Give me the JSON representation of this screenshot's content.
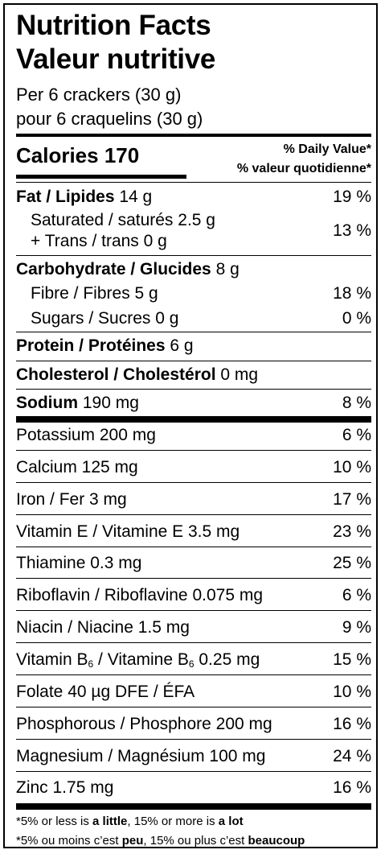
{
  "title_en": "Nutrition Facts",
  "title_fr": "Valeur nutritive",
  "serving_en": "Per 6 crackers (30 g)",
  "serving_fr": "pour 6 craquelins (30 g)",
  "calories_label": "Calories",
  "calories_value": "170",
  "dv_header_en": "% Daily Value*",
  "dv_header_fr": "% valeur quotidienne*",
  "fat": {
    "label": "Fat / Lipides",
    "amount": "14 g",
    "dv": "19 %"
  },
  "saturated": {
    "label": "Saturated / saturés",
    "amount": "2.5 g"
  },
  "trans": {
    "label": "+ Trans / trans",
    "amount": "0 g"
  },
  "sat_trans_dv": "13 %",
  "carbohydrate": {
    "label": "Carbohydrate / Glucides",
    "amount": "8 g"
  },
  "fibre": {
    "label": "Fibre / Fibres",
    "amount": "5 g",
    "dv": "18 %"
  },
  "sugars": {
    "label": "Sugars / Sucres",
    "amount": "0 g",
    "dv": "0 %"
  },
  "protein": {
    "label": "Protein / Protéines",
    "amount": "6 g"
  },
  "cholesterol": {
    "label": "Cholesterol / Cholestérol",
    "amount": "0 mg"
  },
  "sodium": {
    "label": "Sodium",
    "amount": "190 mg",
    "dv": "8 %"
  },
  "minerals": [
    {
      "label": "Potassium 200 mg",
      "dv": "6 %"
    },
    {
      "label": "Calcium 125 mg",
      "dv": "10 %"
    },
    {
      "label": "Iron / Fer 3 mg",
      "dv": "17 %"
    },
    {
      "label": "Vitamin E / Vitamine E 3.5 mg",
      "dv": "23 %"
    },
    {
      "label": "Thiamine 0.3 mg",
      "dv": "25 %"
    },
    {
      "label": "Riboflavin / Riboflavine 0.075 mg",
      "dv": "6 %"
    },
    {
      "label": "Niacin / Niacine 1.5 mg",
      "dv": "9 %"
    },
    {
      "label_a": "Vitamin B",
      "sub_a": "6",
      "label_b": " / Vitamine B",
      "sub_b": "6",
      "label_c": " 0.25 mg",
      "dv": "15 %"
    },
    {
      "label": "Folate 40 µg DFE / ÉFA",
      "dv": "10 %"
    },
    {
      "label": "Phosphorous / Phosphore 200 mg",
      "dv": "16 %"
    },
    {
      "label": "Magnesium / Magnésium 100 mg",
      "dv": "24 %"
    },
    {
      "label": "Zinc 1.75 mg",
      "dv": "16 %"
    }
  ],
  "footnote_en": {
    "a": "*5% or less is ",
    "b": "a little",
    "c": ", 15% or more is ",
    "d": "a lot"
  },
  "footnote_fr": {
    "a": "*5% ou moins c’est ",
    "b": "peu",
    "c": ", 15% ou plus c’est ",
    "d": "beaucoup"
  }
}
